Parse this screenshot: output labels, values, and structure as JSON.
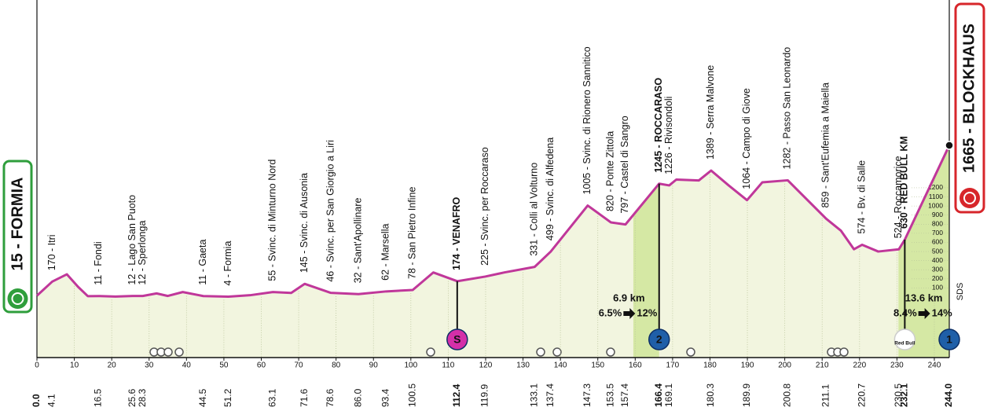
{
  "chart_data": {
    "type": "line",
    "xlim": [
      0,
      244
    ],
    "xticks": [
      0,
      10,
      20,
      30,
      40,
      50,
      60,
      70,
      80,
      90,
      100,
      110,
      120,
      130,
      140,
      150,
      160,
      170,
      180,
      190,
      200,
      210,
      220,
      230,
      240
    ],
    "ylim": [
      0,
      1700
    ],
    "yticks": [
      100,
      200,
      300,
      400,
      500,
      600,
      700,
      800,
      900,
      1000,
      1100,
      1200
    ],
    "axis_note": "SDS",
    "color": "#c0379a",
    "fill_color": "#f2f5df",
    "climb_color": "#d5e8a4",
    "grid": true,
    "x": [
      0,
      4.1,
      8,
      11,
      13.6,
      16.5,
      21,
      25.6,
      28.3,
      32,
      35,
      39,
      44.5,
      51.2,
      57,
      63.1,
      68,
      71.6,
      78.6,
      86,
      93.4,
      100.5,
      106,
      112.4,
      119.9,
      125,
      133.1,
      137.4,
      147.3,
      153.5,
      157.4,
      166.4,
      169.1,
      171,
      177,
      180.3,
      185,
      189.9,
      194,
      200.8,
      211.1,
      215,
      218.5,
      220.7,
      225,
      230.5,
      232.1,
      244
    ],
    "values": [
      15,
      170,
      250,
      112,
      10,
      11,
      5,
      12,
      12,
      40,
      12,
      55,
      11,
      4,
      20,
      55,
      45,
      145,
      46,
      32,
      62,
      78,
      270,
      174,
      225,
      270,
      331,
      499,
      1005,
      820,
      797,
      1245,
      1226,
      1290,
      1280,
      1389,
      1226,
      1064,
      1260,
      1282,
      859,
      730,
      525,
      574,
      500,
      524,
      630,
      1665
    ],
    "waypoints": [
      {
        "km": {
          "value": 0,
          "label": "0.0"
        },
        "name": "15 - FORMIA",
        "style": "start",
        "box_color": "#2f9e3c"
      },
      {
        "km": 4.1,
        "name": "170 - Itri",
        "style": "normal"
      },
      {
        "km": 16.5,
        "name": "11 - Fondi",
        "style": "normal"
      },
      {
        "km": 25.6,
        "name": "12 - Lago San Puoto",
        "style": "normal"
      },
      {
        "km": 28.3,
        "name": "12 - Sperlonga",
        "style": "normal"
      },
      {
        "km": 44.5,
        "name": "11 - Gaeta",
        "style": "normal"
      },
      {
        "km": 51.2,
        "name": "4 - Formia",
        "style": "normal"
      },
      {
        "km": 63.1,
        "name": "55 - Svinc. di Minturno Nord",
        "style": "normal"
      },
      {
        "km": 71.6,
        "name": "145 - Svinc. di Ausonia",
        "style": "normal"
      },
      {
        "km": 78.6,
        "name": "46 - Svinc. per San Giorgio a Liri",
        "style": "normal"
      },
      {
        "km": {
          "value": 86,
          "label": "86.0"
        },
        "name": "32 - Sant'Apollinare",
        "style": "normal"
      },
      {
        "km": 93.4,
        "name": "62 - Marsella",
        "style": "normal"
      },
      {
        "km": 100.5,
        "name": "78 - San Pietro Infine",
        "style": "normal"
      },
      {
        "km": 112.4,
        "name": "174 - VENAFRO",
        "style": "bold",
        "marker": {
          "text": "S",
          "color": "#d42fa8"
        }
      },
      {
        "km": 119.9,
        "name": "225 - Svinc. per Roccaraso",
        "style": "normal"
      },
      {
        "km": 133.1,
        "name": "331 - Colli al Volturno",
        "style": "normal"
      },
      {
        "km": 137.4,
        "name": "499 - Svinc. di Alfedena",
        "style": "normal"
      },
      {
        "km": 147.3,
        "name": "1005 - Svinc. di Rionero Sannitico",
        "style": "normal"
      },
      {
        "km": 153.5,
        "name": "820 - Ponte Zittola",
        "style": "normal"
      },
      {
        "km": 157.4,
        "name": "797 - Castel di Sangro",
        "style": "normal"
      },
      {
        "km": 166.4,
        "name": "1245 - ROCCARASO",
        "style": "bold",
        "marker": {
          "text": "2",
          "color": "#1f5fa8"
        },
        "climb": {
          "length": {
            "value": 6.9,
            "label": "6.9 km"
          },
          "from": "6.5%",
          "to": "12%"
        }
      },
      {
        "km": 169.1,
        "name": "1226 - Rivisondoli",
        "style": "normal"
      },
      {
        "km": 180.3,
        "name": "1389 - Serra Malvone",
        "style": "normal"
      },
      {
        "km": 189.9,
        "name": "1064 - Campo di Giove",
        "style": "normal"
      },
      {
        "km": 200.8,
        "name": "1282 - Passo San Leonardo",
        "style": "normal"
      },
      {
        "km": 211.1,
        "name": "859 - Sant'Eufemia a Maiella",
        "style": "normal"
      },
      {
        "km": 220.7,
        "name": "574 - Bv. di Salle",
        "style": "normal"
      },
      {
        "km": 230.5,
        "name": "524 - Roccamorice",
        "style": "normal"
      },
      {
        "km": 232.1,
        "name": "630 - RED BULL KM",
        "style": "bold",
        "marker": {
          "text": "Red Bull",
          "color": "#ffffff"
        }
      },
      {
        "km": {
          "value": 244,
          "label": "244.0"
        },
        "name": "1665 - BLOCKHAUS",
        "style": "finish",
        "box_color": "#d7262b",
        "marker": {
          "text": "1",
          "color": "#1f5fa8"
        },
        "climb": {
          "length": {
            "value": 13.6,
            "label": "13.6 km"
          },
          "from": "8.4%",
          "to": "14%"
        }
      }
    ]
  }
}
